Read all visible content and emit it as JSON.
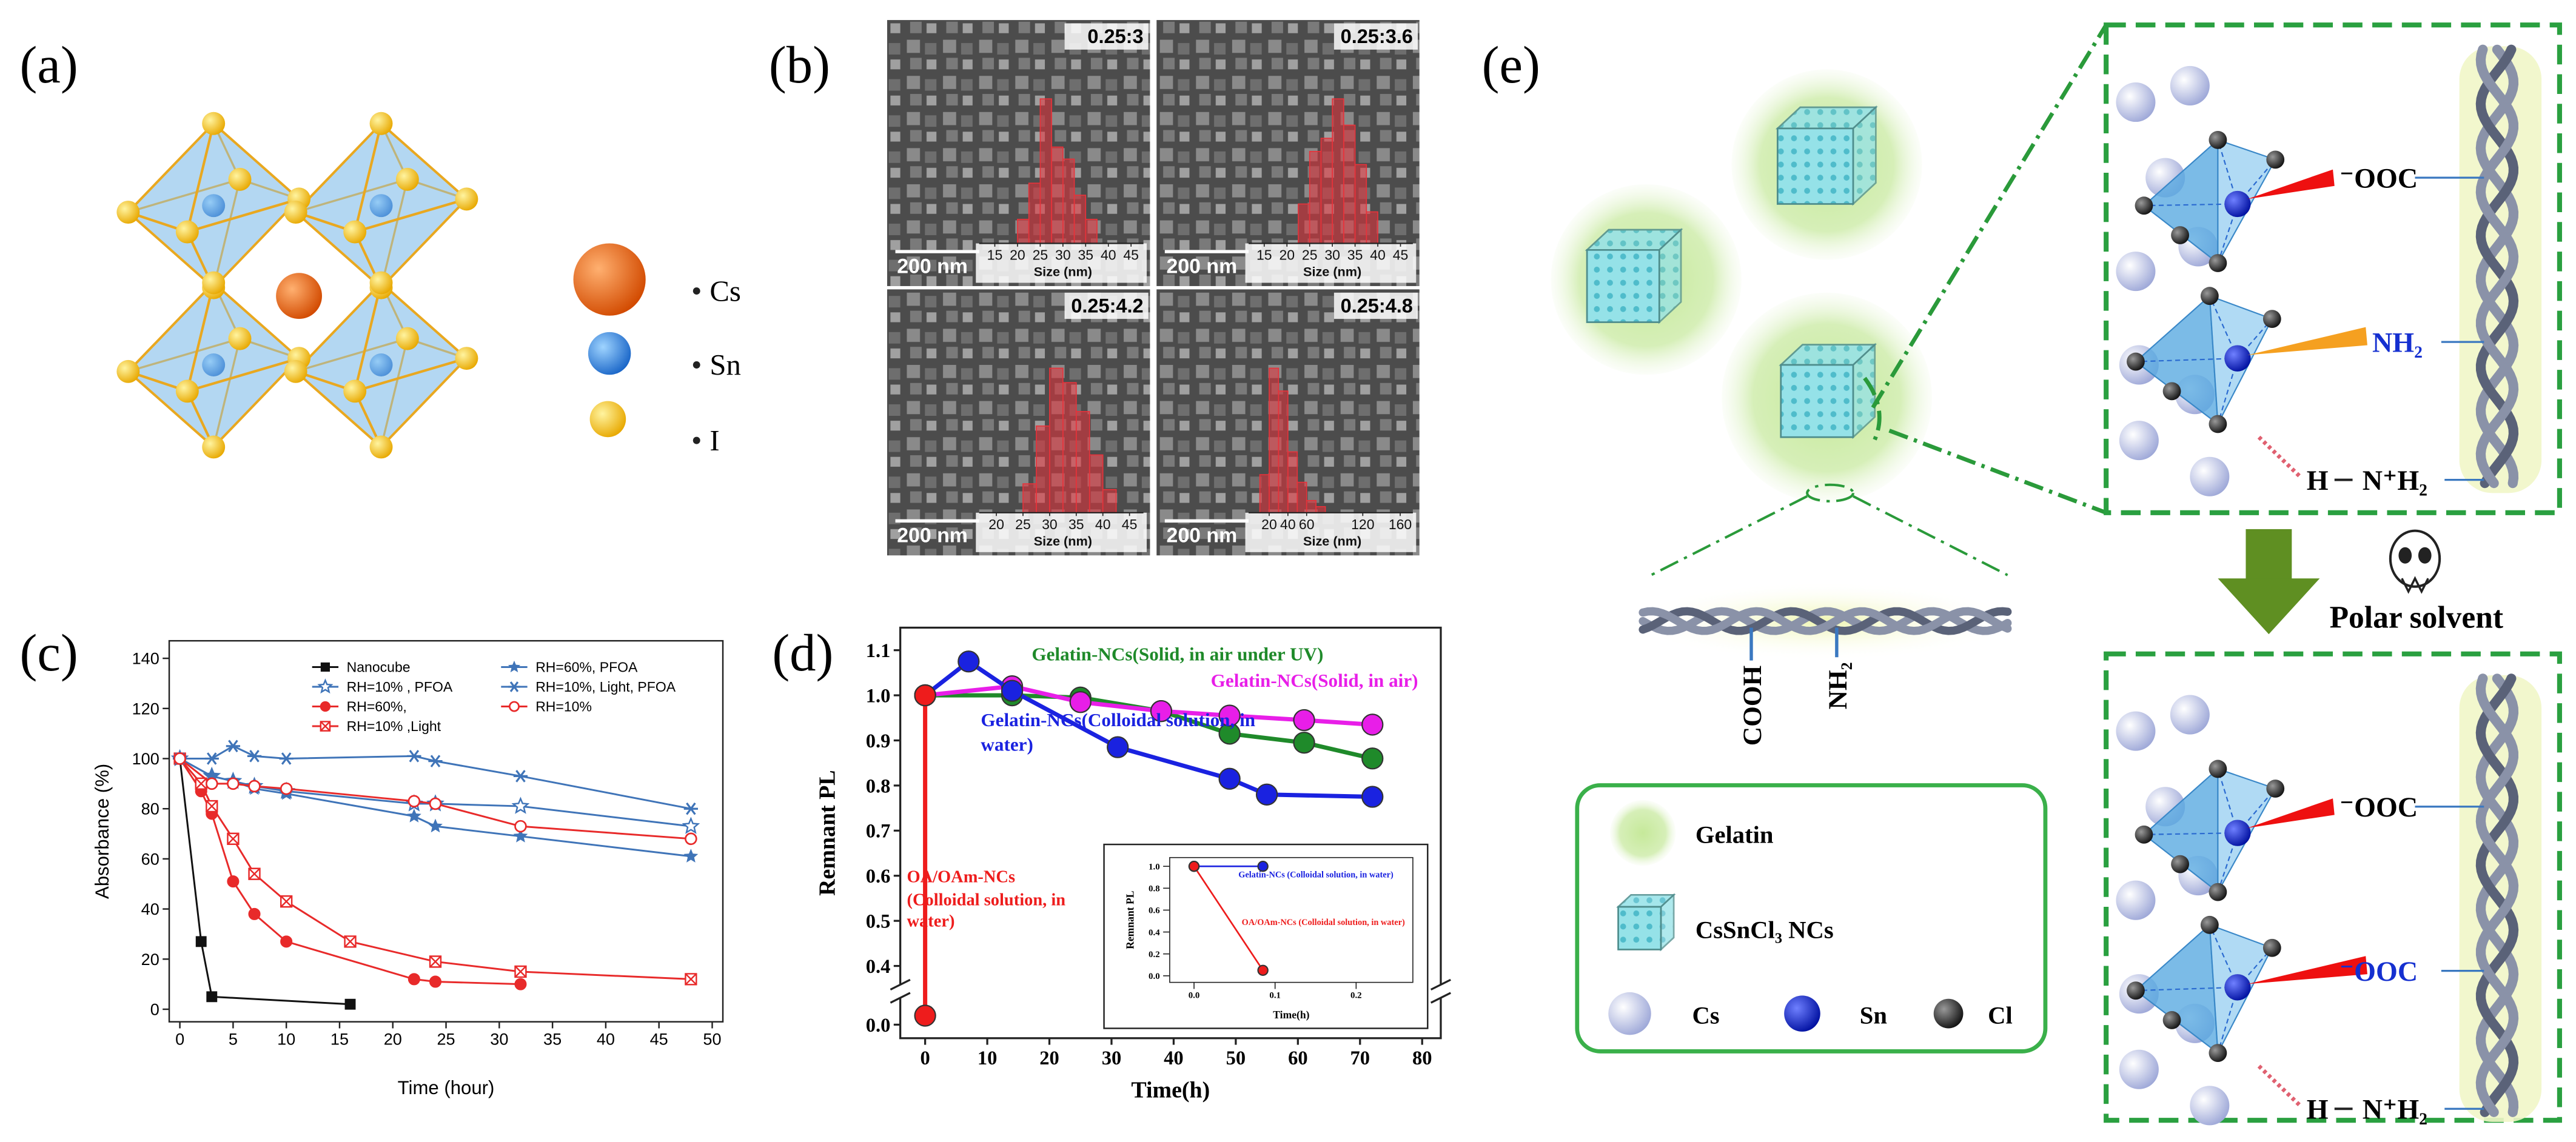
{
  "panel_labels": [
    "(a)",
    "(b)",
    "(c)",
    "(d)",
    "(e)"
  ],
  "structure_legend": [
    "Cs",
    "Sn",
    "I"
  ],
  "tem_scale_bar": "200 nm",
  "mechanism": {
    "top_box": {
      "carboxylate": "⁻OOC",
      "amine": "NH₂",
      "hydrogen": "H",
      "ammonium": "N⁺H₂"
    },
    "polar_solvent": "Polar solvent",
    "bottom_box": {
      "carboxylate": "⁻OOC",
      "carboxylate_2": "⁻OOC",
      "hydrogen": "H",
      "ammonium": "N⁺H₂"
    },
    "gelatin_groups": [
      "COOH",
      "NH₂"
    ],
    "legend": [
      "Gelatin",
      "CsSnCl₃ NCs",
      "Cs",
      "Sn",
      "Cl"
    ]
  },
  "chart_data": [
    {
      "type": "line",
      "xlabel": "Time (hour)",
      "ylabel": "Absorbance (%)",
      "xlim": [
        -1,
        51
      ],
      "ylim": [
        -5,
        147
      ],
      "xticks": [
        0,
        5,
        10,
        15,
        20,
        25,
        30,
        35,
        40,
        45,
        50
      ],
      "yticks": [
        0,
        20,
        40,
        60,
        80,
        100,
        120,
        140
      ],
      "legend": "upper center",
      "series": [
        {
          "name": "Nanocube",
          "color": "#111111",
          "marker": "square",
          "x": [
            0,
            2,
            3,
            16
          ],
          "values": [
            100,
            27,
            5,
            2
          ]
        },
        {
          "name": "RH=10% , PFOA",
          "color": "#3f74b8",
          "marker": "star-open",
          "x": [
            0,
            3,
            5,
            7,
            10,
            22,
            24,
            32,
            48
          ],
          "values": [
            100,
            93,
            91,
            89,
            87,
            82,
            82,
            81,
            73
          ]
        },
        {
          "name": "RH=60%,",
          "color": "#e82a2a",
          "marker": "circle",
          "x": [
            0,
            2,
            3,
            5,
            7,
            10,
            22,
            24,
            32
          ],
          "values": [
            100,
            87,
            78,
            51,
            38,
            27,
            12,
            11,
            10
          ]
        },
        {
          "name": "RH=10% ,Light",
          "color": "#e82a2a",
          "marker": "square-cross",
          "x": [
            0,
            2,
            3,
            5,
            7,
            10,
            16,
            24,
            32,
            48
          ],
          "values": [
            100,
            90,
            81,
            68,
            54,
            43,
            27,
            19,
            15,
            12
          ]
        },
        {
          "name": "RH=60%, PFOA",
          "color": "#3f74b8",
          "marker": "star",
          "x": [
            0,
            3,
            5,
            7,
            10,
            22,
            24,
            32,
            48
          ],
          "values": [
            100,
            93,
            91,
            88,
            86,
            77,
            73,
            69,
            61
          ]
        },
        {
          "name": "RH=10%, Light, PFOA",
          "color": "#3f74b8",
          "marker": "asterisk",
          "x": [
            0,
            3,
            5,
            7,
            10,
            22,
            24,
            32,
            48
          ],
          "values": [
            100,
            100,
            105,
            101,
            100,
            101,
            99,
            93,
            80
          ]
        },
        {
          "name": "RH=10%",
          "color": "#e82a2a",
          "marker": "circle-open",
          "x": [
            0,
            3,
            5,
            7,
            10,
            22,
            24,
            32,
            48
          ],
          "values": [
            100,
            90,
            90,
            89,
            88,
            83,
            82,
            73,
            68
          ]
        }
      ]
    },
    {
      "type": "line",
      "xlabel": "Time(h)",
      "ylabel": "Remnant PL",
      "xlim": [
        -4,
        83
      ],
      "ylim": [
        -0.03,
        1.15
      ],
      "broken_axis": true,
      "xticks": [
        0,
        10,
        20,
        30,
        40,
        50,
        60,
        70,
        80
      ],
      "yticks": [
        {
          "value": 0,
          "label": "0.0"
        },
        0.4,
        0.5,
        0.6,
        0.7,
        0.8,
        0.9,
        {
          "value": 1,
          "label": "1.0"
        },
        1.1
      ],
      "series": [
        {
          "name": "Gelatin-NCs(Solid, in air under UV)",
          "color": "#1f8a2a",
          "marker": "circle",
          "x": [
            0,
            14,
            25,
            38,
            49,
            61,
            72
          ],
          "values": [
            1.0,
            1.0,
            0.995,
            0.965,
            0.915,
            0.895,
            0.86
          ]
        },
        {
          "name": "Gelatin-NCs(Solid, in air)",
          "color": "#e81ee8",
          "marker": "circle",
          "x": [
            0,
            14,
            25,
            38,
            49,
            61,
            72
          ],
          "values": [
            1.0,
            1.02,
            0.985,
            0.965,
            0.955,
            0.945,
            0.935
          ]
        },
        {
          "name": "Gelatin-NCs(Colloidal solution, in water)",
          "color": "#1a22e0",
          "marker": "circle",
          "x": [
            0,
            7,
            14,
            31,
            49,
            55,
            72
          ],
          "values": [
            1.0,
            1.075,
            1.01,
            0.885,
            0.815,
            0.78,
            0.775
          ]
        },
        {
          "name": "OA/OAm-NCs (Colloidal solution, in water)",
          "color": "#ee1c1c",
          "marker": "circle",
          "x": [
            0,
            0
          ],
          "values": [
            1.0,
            0.02
          ]
        }
      ]
    },
    {
      "type": "line",
      "xlabel": "Time(h)",
      "ylabel": "Remnant PL",
      "xlim": [
        -0.03,
        0.27
      ],
      "ylim": [
        -0.06,
        1.08
      ],
      "xticks": [
        {
          "value": 0,
          "label": "0.0"
        },
        0.1,
        0.2
      ],
      "yticks": [
        {
          "value": 0,
          "label": "0.0"
        },
        0.2,
        0.4,
        0.6,
        0.8,
        {
          "value": 1,
          "label": "1.0"
        }
      ],
      "series": [
        {
          "name": "Gelatin-NCs (Colloidal solution, in water)",
          "color": "#1a22e0",
          "marker": "circle",
          "x": [
            0,
            0.085
          ],
          "values": [
            1,
            1
          ]
        },
        {
          "name": "OA/OAm-NCs (Colloidal solution, in water)",
          "color": "#ee1c1c",
          "marker": "circle",
          "x": [
            0,
            0.085
          ],
          "values": [
            1,
            0.05
          ]
        }
      ]
    },
    {
      "type": "histogram",
      "title": "0.25:3",
      "xlabel": "Size (nm)",
      "xlim": [
        13,
        47
      ],
      "xticks": [
        15,
        20,
        25,
        30,
        35,
        40,
        45
      ],
      "bins": [
        20,
        22.5,
        25,
        27.5,
        30,
        32.5,
        35,
        37.5
      ],
      "values": [
        10,
        25,
        60,
        40,
        35,
        20,
        10
      ],
      "color": "#e8323a"
    },
    {
      "type": "histogram",
      "title": "0.25:3.6",
      "xlabel": "Size (nm)",
      "xlim": [
        13,
        47
      ],
      "xticks": [
        15,
        20,
        25,
        30,
        35,
        40,
        45
      ],
      "bins": [
        22.5,
        25,
        27.5,
        30,
        32.5,
        35,
        37.5,
        40
      ],
      "values": [
        15,
        35,
        40,
        55,
        45,
        30,
        12
      ],
      "color": "#e8323a"
    },
    {
      "type": "histogram",
      "title": "0.25:4.2",
      "xlabel": "Size (nm)",
      "xlim": [
        18,
        47
      ],
      "xticks": [
        20,
        25,
        30,
        35,
        40,
        45
      ],
      "bins": [
        25,
        27.5,
        30,
        32.5,
        35,
        37.5,
        40,
        42.5
      ],
      "values": [
        10,
        30,
        50,
        45,
        35,
        20,
        8
      ],
      "color": "#e8323a"
    },
    {
      "type": "histogram",
      "title": "0.25:4.8",
      "xlabel": "Size (nm)",
      "xlim": [
        5,
        170
      ],
      "xticks": [
        20,
        40,
        60,
        120,
        160
      ],
      "bins": [
        10,
        20,
        30,
        40,
        50,
        60,
        70,
        80
      ],
      "values": [
        25,
        95,
        80,
        40,
        20,
        8,
        4
      ],
      "color": "#e8323a"
    }
  ]
}
